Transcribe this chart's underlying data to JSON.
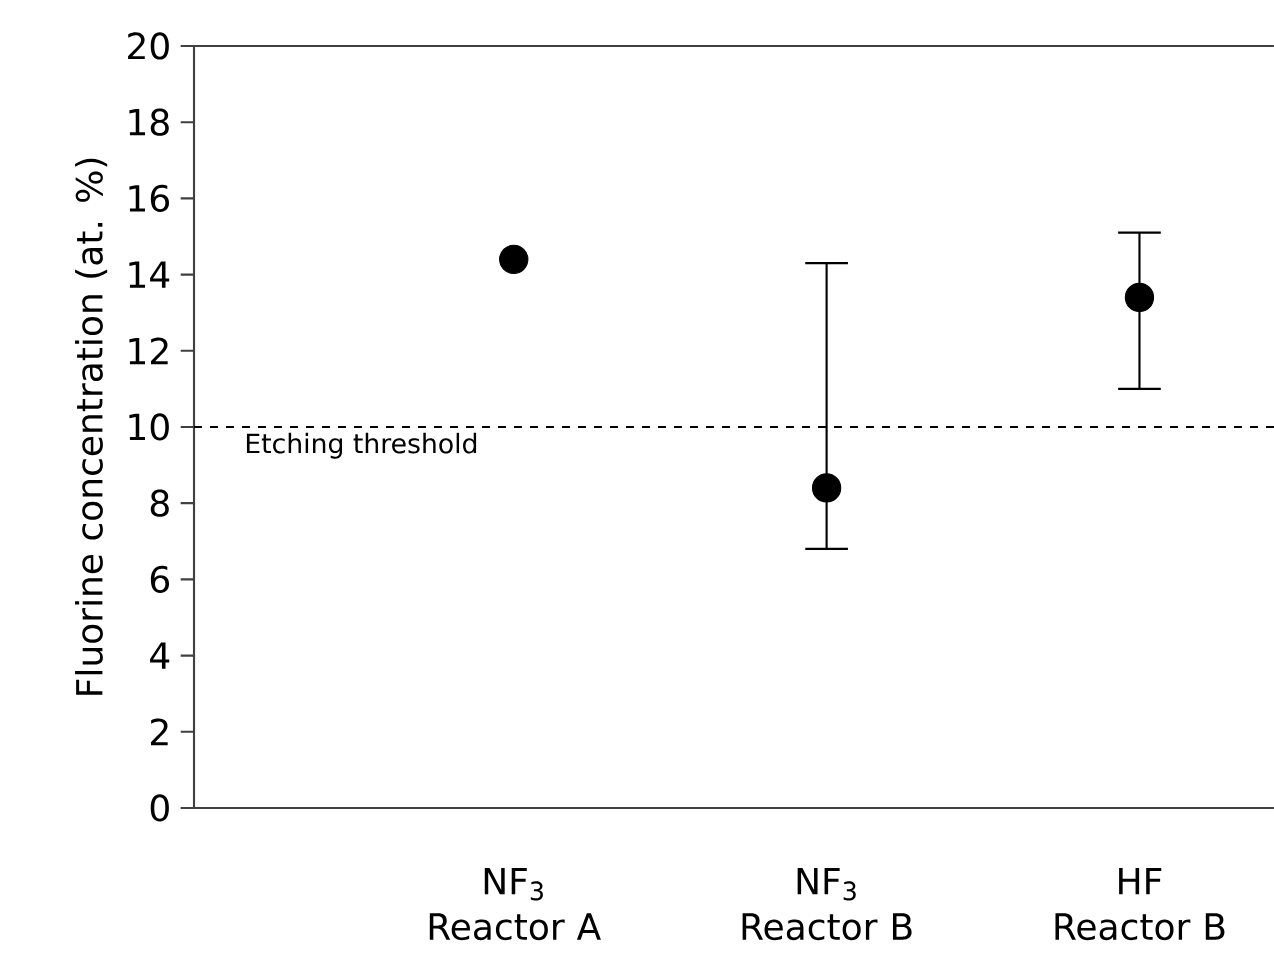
{
  "chart_data": {
    "type": "scatter",
    "ylabel": "Fluorine concentration (at. %)",
    "categories": [
      "NF$_{3}$ Reactor A",
      "NF$_{3}$ Reactor B",
      "HF Reactor B"
    ],
    "series": [
      {
        "color": "#000000",
        "values": [
          14.4,
          8.4,
          13.4
        ],
        "errors": [
          null,
          [
            6.8,
            14.3
          ],
          [
            11.0,
            15.1
          ]
        ]
      }
    ],
    "marker": "circle",
    "ylim": [
      0,
      20
    ],
    "yticks": [
      0,
      2,
      4,
      6,
      8,
      10,
      12,
      14,
      16,
      18,
      20
    ],
    "ref_lines": [
      {
        "axis": "y",
        "value": 10,
        "label": "Etching threshold",
        "color": "#000000",
        "line_style": "dashed"
      }
    ]
  }
}
